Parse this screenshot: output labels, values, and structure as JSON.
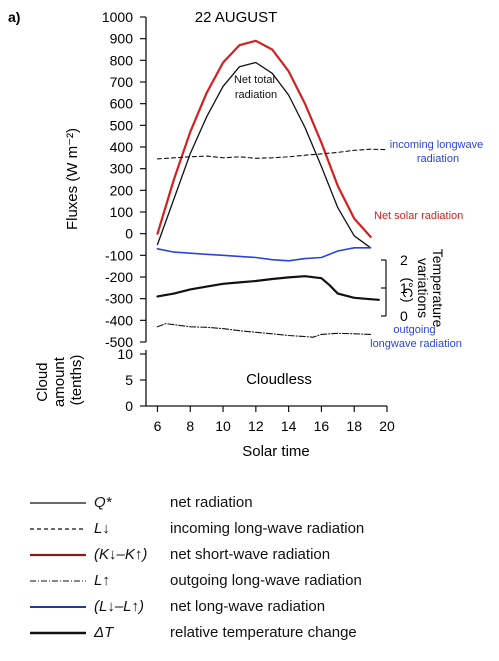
{
  "panel_label": "a)",
  "chart_data": [
    {
      "type": "line",
      "title": "22 AUGUST",
      "xlabel": "Solar time",
      "ylabel": "Fluxes (W m⁻²)",
      "x_ticks": [
        "6",
        "8",
        "10",
        "12",
        "14",
        "16",
        "18",
        "20"
      ],
      "xlim": [
        5.3,
        20
      ],
      "y_ticks": [
        "1000",
        "900",
        "800",
        "700",
        "600",
        "500",
        "400",
        "300",
        "200",
        "100",
        "0",
        "-100",
        "-200",
        "-300",
        "-400",
        "-500"
      ],
      "ylim": [
        -500,
        1000
      ],
      "grid": false,
      "series": [
        {
          "key": "net_solar",
          "name": "Net solar radiation",
          "color": "#d42020",
          "style": "solid",
          "x": [
            6,
            7,
            8,
            9,
            10,
            11,
            12,
            13,
            14,
            15,
            16,
            17,
            18,
            19
          ],
          "y": [
            0,
            250,
            470,
            650,
            790,
            870,
            890,
            850,
            750,
            600,
            420,
            220,
            70,
            -15
          ]
        },
        {
          "key": "net_total",
          "name": "Net total radiation",
          "color": "#111111",
          "style": "solid",
          "x": [
            6,
            7,
            8,
            9,
            10,
            11,
            12,
            13,
            14,
            15,
            16,
            17,
            18,
            19
          ],
          "y": [
            -50,
            160,
            370,
            540,
            680,
            770,
            790,
            740,
            640,
            490,
            310,
            120,
            -10,
            -65
          ]
        },
        {
          "key": "incoming_lw",
          "name": "incoming longwave radiation",
          "color": "#111111",
          "style": "dashed",
          "x": [
            6,
            7,
            8,
            9,
            10,
            11,
            12,
            13,
            14,
            15,
            16,
            17,
            18,
            19,
            20
          ],
          "y": [
            345,
            350,
            355,
            358,
            350,
            355,
            348,
            350,
            355,
            362,
            368,
            375,
            385,
            390,
            388
          ]
        },
        {
          "key": "net_lw",
          "name": "net long-wave radiation",
          "color": "#2a45d8",
          "style": "solid",
          "x": [
            6,
            7,
            8,
            9,
            10,
            11,
            12,
            13,
            14,
            15,
            16,
            17,
            18,
            19
          ],
          "y": [
            -70,
            -85,
            -90,
            -95,
            -100,
            -105,
            -110,
            -120,
            -125,
            -115,
            -110,
            -80,
            -65,
            -65
          ]
        },
        {
          "key": "temp_change",
          "name": "relative temperature change",
          "color": "#111111",
          "style": "bold",
          "x": [
            6,
            7,
            8,
            9,
            10,
            11,
            12,
            13,
            14,
            15,
            16,
            16.5,
            17,
            18,
            19,
            19.5
          ],
          "y": [
            0.7,
            0.8,
            0.95,
            1.05,
            1.15,
            1.2,
            1.25,
            1.32,
            1.38,
            1.42,
            1.35,
            1.1,
            0.8,
            0.65,
            0.6,
            0.58
          ]
        },
        {
          "key": "outgoing_lw",
          "name": "outgoing longwave radiation",
          "color": "#111111",
          "style": "dashdot",
          "x": [
            6,
            6.5,
            7,
            8,
            9,
            10,
            11,
            12,
            13,
            14,
            15,
            15.5,
            16,
            17,
            18,
            19
          ],
          "y": [
            -430,
            -415,
            -420,
            -430,
            -432,
            -438,
            -448,
            -455,
            -462,
            -470,
            -475,
            -478,
            -465,
            -460,
            -462,
            -465
          ]
        }
      ],
      "annotations": [
        {
          "text_lines": [
            "Net total",
            "radiation"
          ],
          "color": "#111111"
        },
        {
          "text_lines": [
            "incoming longwave",
            "radiation"
          ],
          "color": "#2a45d8"
        },
        {
          "text_lines": [
            "Net solar radiation"
          ],
          "color": "#d42020"
        },
        {
          "text_lines": [
            "outgoing",
            "longwave radiation"
          ],
          "color": "#2a45d8"
        }
      ],
      "secondary_axis": {
        "label_lines": [
          "Temperature",
          "variations",
          "(°C)"
        ],
        "ticks": [
          "2",
          "1",
          "0"
        ],
        "range": [
          0,
          2
        ]
      }
    },
    {
      "type": "line",
      "title": "Cloudless",
      "ylabel_lines": [
        "Cloud",
        "amount",
        "(tenths)"
      ],
      "y_ticks": [
        "10",
        "5",
        "0"
      ],
      "ylim": [
        0,
        10
      ],
      "series": []
    }
  ],
  "legend": [
    {
      "symbol": "Q*",
      "description": "net radiation",
      "line_style": "solid",
      "color": "#111111"
    },
    {
      "symbol": "L↓",
      "description": "incoming long-wave radiation",
      "line_style": "dashed",
      "color": "#111111"
    },
    {
      "symbol": "(K↓–K↑)",
      "description": "net short-wave radiation",
      "line_style": "red-solid",
      "color": "#d42020"
    },
    {
      "symbol": "L↑",
      "description": "outgoing long-wave radiation",
      "line_style": "dashdot",
      "color": "#111111"
    },
    {
      "symbol": "(L↓–L↑)",
      "description": "net long-wave radiation",
      "line_style": "blue-solid",
      "color": "#2a45d8"
    },
    {
      "symbol": "ΔT",
      "description": "relative temperature change",
      "line_style": "bold",
      "color": "#111111"
    }
  ]
}
